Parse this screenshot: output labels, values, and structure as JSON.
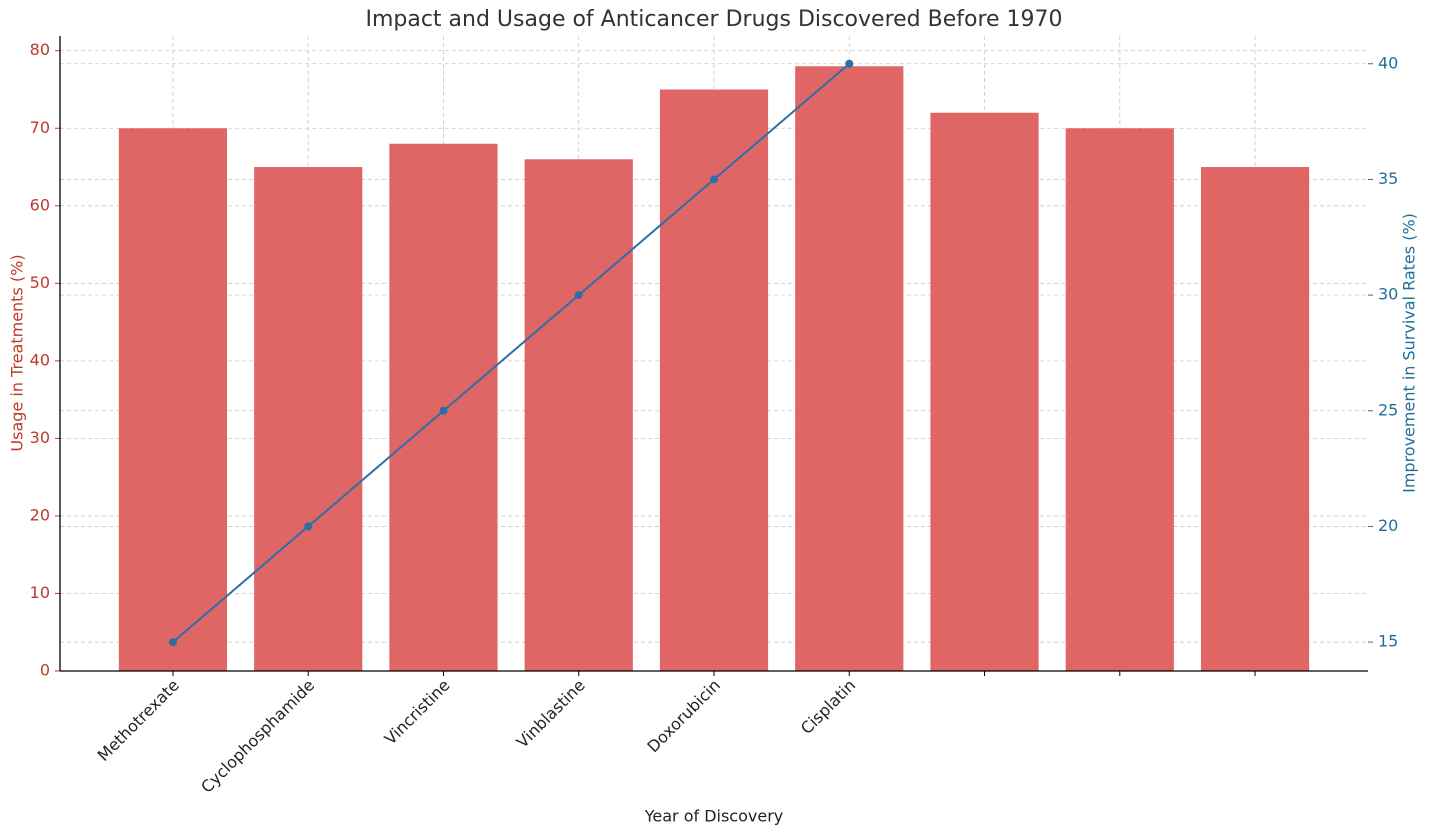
{
  "chart_data": {
    "type": "bar",
    "title": "Impact and Usage of Anticancer Drugs Discovered Before 1970",
    "xlabel": "Year of Discovery",
    "ylabel": "Usage in Treatments (%)",
    "y2label": "Improvement in Survival Rates (%)",
    "categories": [
      "Methotrexate",
      "Cyclophosphamide",
      "Vincristine",
      "Vinblastine",
      "Doxorubicin",
      "Cisplatin",
      null,
      null,
      null
    ],
    "series": [
      {
        "type": "bar",
        "color": "#e06666",
        "values": [
          70,
          65,
          68,
          66,
          75,
          78,
          72,
          70,
          65
        ]
      },
      {
        "type": "line",
        "axis": "y2",
        "color": "#2b6fa5",
        "values": [
          15,
          20,
          25,
          30,
          35,
          40,
          null,
          null,
          null
        ]
      }
    ],
    "ylim": [
      0,
      81.9
    ],
    "yticks": [
      0,
      10,
      20,
      30,
      40,
      50,
      60,
      70,
      80
    ],
    "y2lim": [
      13.75,
      41.2
    ],
    "y2ticks": [
      15,
      20,
      25,
      30,
      35,
      40
    ],
    "ycolor": "#c0392b",
    "y2color": "#1f6f99",
    "grid": true
  }
}
